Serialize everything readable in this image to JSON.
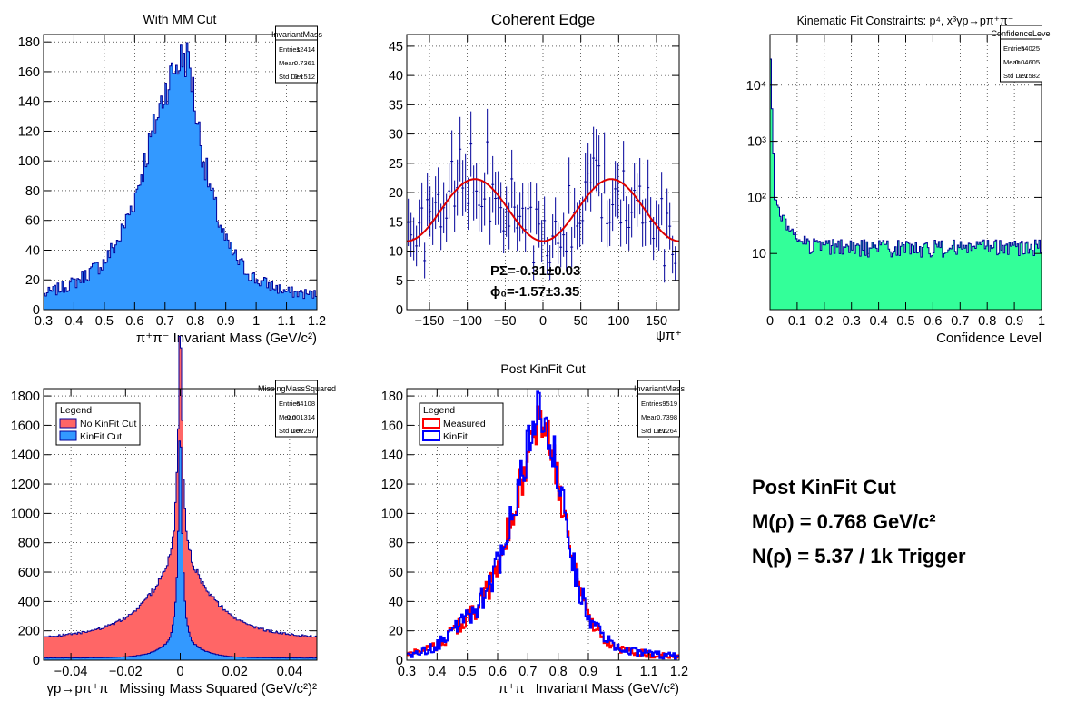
{
  "summary": {
    "title": "Post KinFit Cut",
    "mass_line": "M(ρ) = 0.768 GeV/c²",
    "count_line": "N(ρ) = 5.37 / 1k Trigger"
  },
  "colors": {
    "blue_fill": "#3399ff",
    "blue_line": "#000099",
    "red_fill": "#ff6666",
    "red_line": "#ff0000",
    "green_fill": "#33ff99",
    "kinfit_line": "#0000ff",
    "fit_curve": "#dd0000"
  },
  "chart_data": [
    {
      "type": "bar",
      "title": "With MM Cut",
      "xlabel": "π⁺π⁻ Invariant Mass (GeV/c²)",
      "ylabel": "",
      "xlim": [
        0.3,
        1.2
      ],
      "ylim": [
        0,
        185
      ],
      "xticks": [
        0.3,
        0.4,
        0.5,
        0.6,
        0.7,
        0.8,
        0.9,
        1,
        1.1,
        1.2
      ],
      "xtick_labels": [
        "0.3",
        "0.4",
        "0.5",
        "0.6",
        "0.7",
        "0.8",
        "0.9",
        "1",
        "1.1",
        "1.2"
      ],
      "yticks": [
        0,
        20,
        40,
        60,
        80,
        100,
        120,
        140,
        160,
        180
      ],
      "ytick_labels": [
        "0",
        "20",
        "40",
        "60",
        "80",
        "100",
        "120",
        "140",
        "160",
        "180"
      ],
      "grid": true,
      "stats": {
        "name": "InvariantMass",
        "rows": [
          [
            "Entries",
            "12414"
          ],
          [
            "Mean",
            "0.7361"
          ],
          [
            "Std Dev",
            "0.1512"
          ]
        ]
      },
      "profile": {
        "x": [
          0.3,
          0.4,
          0.5,
          0.55,
          0.6,
          0.65,
          0.7,
          0.73,
          0.76,
          0.78,
          0.8,
          0.83,
          0.86,
          0.9,
          0.95,
          1.0,
          1.1,
          1.2
        ],
        "y": [
          10,
          18,
          32,
          48,
          75,
          112,
          148,
          162,
          170,
          168,
          135,
          98,
          72,
          45,
          30,
          20,
          12,
          10
        ]
      }
    },
    {
      "type": "scatter",
      "title": "Coherent Edge",
      "xlabel": "ψπ⁺",
      "ylabel": "",
      "xlim": [
        -180,
        180
      ],
      "ylim": [
        0,
        47
      ],
      "xticks": [
        -150,
        -100,
        -50,
        0,
        50,
        100,
        150
      ],
      "xtick_labels": [
        "−150",
        "−100",
        "−50",
        "0",
        "50",
        "100",
        "150"
      ],
      "yticks": [
        0,
        5,
        10,
        15,
        20,
        25,
        30,
        35,
        40,
        45
      ],
      "ytick_labels": [
        "0",
        "5",
        "10",
        "15",
        "20",
        "25",
        "30",
        "35",
        "40",
        "45"
      ],
      "grid": true,
      "fit_labels": [
        "PΣ=-0.31±0.03",
        "ϕ₀=-1.57±3.35"
      ],
      "fit": {
        "mean": 17,
        "amplitude": 5.3,
        "phase_deg": 90
      }
    },
    {
      "type": "bar",
      "title": "Kinematic Fit Constraints: p⁴, x³γp→pπ⁺π⁻",
      "xlabel": "Confidence Level",
      "ylabel": "",
      "xlim": [
        0,
        1
      ],
      "ylim": [
        1,
        80000
      ],
      "log_y": true,
      "xticks": [
        0,
        0.1,
        0.2,
        0.3,
        0.4,
        0.5,
        0.6,
        0.7,
        0.8,
        0.9,
        1
      ],
      "xtick_labels": [
        "0",
        "0.1",
        "0.2",
        "0.3",
        "0.4",
        "0.5",
        "0.6",
        "0.7",
        "0.8",
        "0.9",
        "1"
      ],
      "yticks": [
        10,
        100,
        1000,
        10000
      ],
      "ytick_labels": [
        "10",
        "10²",
        "10³",
        "10⁴"
      ],
      "grid": true,
      "stats": {
        "name": "ConfidenceLevel",
        "rows": [
          [
            "Entries",
            "54025"
          ],
          [
            "Mean",
            "0.04605"
          ],
          [
            "Std Dev",
            "0.1582"
          ]
        ]
      }
    },
    {
      "type": "bar",
      "title": "",
      "xlabel": "γp→pπ⁺π⁻ Missing Mass Squared (GeV/c²)²",
      "ylabel": "",
      "xlim": [
        -0.05,
        0.05
      ],
      "ylim": [
        0,
        1850
      ],
      "xticks": [
        -0.04,
        -0.02,
        0,
        0.02,
        0.04
      ],
      "xtick_labels": [
        "−0.04",
        "−0.02",
        "0",
        "0.02",
        "0.04"
      ],
      "yticks": [
        0,
        200,
        400,
        600,
        800,
        1000,
        1200,
        1400,
        1600,
        1800
      ],
      "ytick_labels": [
        "0",
        "200",
        "400",
        "600",
        "800",
        "1000",
        "1200",
        "1400",
        "1600",
        "1800"
      ],
      "grid": true,
      "legend": {
        "title": "Legend",
        "items": [
          "No KinFit Cut",
          "KinFit Cut"
        ],
        "position": "top-left"
      },
      "stats": {
        "name": "MissingMassSquared",
        "rows": [
          [
            "Entries",
            "64108"
          ],
          [
            "Mean",
            "-0.001314"
          ],
          [
            "Std Dev",
            "0.02297"
          ]
        ]
      }
    },
    {
      "type": "line",
      "title": "Post KinFit Cut",
      "xlabel": "π⁺π⁻ Invariant Mass (GeV/c²)",
      "ylabel": "",
      "xlim": [
        0.3,
        1.2
      ],
      "ylim": [
        0,
        185
      ],
      "xticks": [
        0.3,
        0.4,
        0.5,
        0.6,
        0.7,
        0.8,
        0.9,
        1,
        1.1,
        1.2
      ],
      "xtick_labels": [
        "0.3",
        "0.4",
        "0.5",
        "0.6",
        "0.7",
        "0.8",
        "0.9",
        "1",
        "1.1",
        "1.2"
      ],
      "yticks": [
        0,
        20,
        40,
        60,
        80,
        100,
        120,
        140,
        160,
        180
      ],
      "ytick_labels": [
        "0",
        "20",
        "40",
        "60",
        "80",
        "100",
        "120",
        "140",
        "160",
        "180"
      ],
      "grid": true,
      "legend": {
        "title": "Legend",
        "items": [
          "Measured",
          "KinFit"
        ],
        "position": "top-left"
      },
      "stats": {
        "name": "InvariantMass",
        "rows": [
          [
            "Entries",
            "9519"
          ],
          [
            "Mean",
            "0.7398"
          ],
          [
            "Std Dev",
            "0.1264"
          ]
        ]
      },
      "profile": {
        "x": [
          0.3,
          0.4,
          0.5,
          0.55,
          0.6,
          0.65,
          0.7,
          0.73,
          0.75,
          0.77,
          0.8,
          0.83,
          0.86,
          0.9,
          0.95,
          1.0,
          1.1,
          1.2
        ],
        "y": [
          3,
          10,
          28,
          40,
          62,
          100,
          140,
          160,
          165,
          155,
          120,
          85,
          55,
          30,
          15,
          8,
          4,
          3
        ]
      }
    }
  ]
}
